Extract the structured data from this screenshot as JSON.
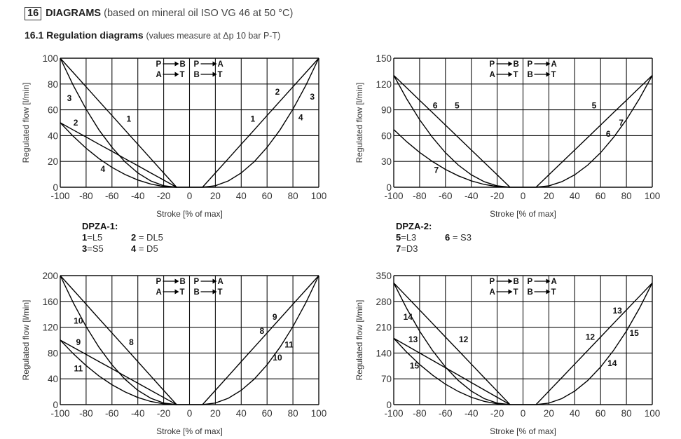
{
  "header": {
    "number": "16",
    "title": "DIAGRAMS",
    "subtitle": "(based on mineral oil ISO VG 46 at 50 °C)"
  },
  "section": {
    "title": "16.1 Regulation diagrams",
    "subtitle": "(values measure at Δp 10 bar P-T)"
  },
  "legends": [
    {
      "title": "DPZA-1:",
      "rows": [
        [
          {
            "num": "1",
            "text": "=L5"
          },
          {
            "num": "2",
            "text": " = DL5"
          }
        ],
        [
          {
            "num": "3",
            "text": "=S5"
          },
          {
            "num": "4",
            "text": " = D5"
          }
        ]
      ]
    },
    {
      "title": "DPZA-2:",
      "rows": [
        [
          {
            "num": "5",
            "text": "=L3"
          },
          {
            "num": "6",
            "text": " = S3"
          }
        ],
        [
          {
            "num": "7",
            "text": "=D3"
          }
        ]
      ]
    }
  ],
  "flow_labels": {
    "left": [
      "P",
      "B",
      "A",
      "T"
    ],
    "right": [
      "P",
      "A",
      "B",
      "T"
    ]
  },
  "chart_data": [
    {
      "type": "line",
      "xlabel": "Stroke [% of max]",
      "ylabel": "Regulated flow [l/min]",
      "xlim": [
        -100,
        100
      ],
      "ylim": [
        0,
        100
      ],
      "xticks": [
        -100,
        -80,
        -60,
        -40,
        -20,
        0,
        20,
        40,
        60,
        80,
        100
      ],
      "yticks": [
        0,
        20,
        40,
        60,
        80,
        100
      ],
      "grid": true,
      "x_left": [
        -100,
        -90,
        -80,
        -70,
        -60,
        -50,
        -40,
        -30,
        -20,
        -10
      ],
      "x_right": [
        10,
        20,
        30,
        40,
        50,
        60,
        70,
        80,
        90,
        100
      ],
      "series": [
        {
          "side": "left",
          "values": [
            100,
            88.9,
            77.8,
            66.7,
            55.6,
            44.4,
            33.3,
            22.2,
            11.1,
            0
          ]
        },
        {
          "side": "left",
          "values": [
            100,
            79,
            60.5,
            44.4,
            30.9,
            19.8,
            11.1,
            4.9,
            1.2,
            0
          ]
        },
        {
          "side": "left",
          "values": [
            50,
            44.4,
            38.9,
            33.3,
            27.8,
            22.2,
            16.7,
            11.1,
            5.6,
            0
          ]
        },
        {
          "side": "left",
          "values": [
            50,
            39.5,
            30.2,
            22.2,
            15.4,
            9.9,
            5.6,
            2.5,
            0.6,
            0
          ]
        },
        {
          "side": "right",
          "values": [
            0,
            11.1,
            22.2,
            33.3,
            44.4,
            55.6,
            66.7,
            77.8,
            88.9,
            100
          ]
        },
        {
          "side": "right",
          "values": [
            0,
            1.2,
            4.9,
            11.1,
            19.8,
            30.9,
            44.4,
            60.5,
            79,
            100
          ]
        }
      ],
      "annotations": [
        {
          "text": "3",
          "x": -93,
          "y": 69
        },
        {
          "text": "2",
          "x": -88,
          "y": 50
        },
        {
          "text": "1",
          "x": -47,
          "y": 53
        },
        {
          "text": "4",
          "x": -67,
          "y": 14
        },
        {
          "text": "1",
          "x": 49,
          "y": 53
        },
        {
          "text": "2",
          "x": 68,
          "y": 74
        },
        {
          "text": "3",
          "x": 95,
          "y": 70
        },
        {
          "text": "4",
          "x": 86,
          "y": 54
        }
      ]
    },
    {
      "type": "line",
      "xlabel": "Stroke [% of max]",
      "ylabel": "Regulated flow [l/min]",
      "xlim": [
        -100,
        100
      ],
      "ylim": [
        0,
        150
      ],
      "xticks": [
        -100,
        -80,
        -60,
        -40,
        -20,
        0,
        20,
        40,
        60,
        80,
        100
      ],
      "yticks": [
        0,
        30,
        60,
        90,
        120,
        150
      ],
      "grid": true,
      "x_left": [
        -100,
        -90,
        -80,
        -70,
        -60,
        -50,
        -40,
        -30,
        -20,
        -10
      ],
      "x_right": [
        10,
        20,
        30,
        40,
        50,
        60,
        70,
        80,
        90,
        100
      ],
      "series": [
        {
          "side": "left",
          "values": [
            130,
            115.6,
            101.1,
            86.7,
            72.2,
            57.8,
            43.3,
            28.9,
            14.4,
            0
          ]
        },
        {
          "side": "left",
          "values": [
            130,
            102.7,
            78.6,
            57.8,
            40.1,
            25.7,
            14.4,
            6.4,
            1.6,
            0
          ]
        },
        {
          "side": "left",
          "values": [
            67,
            52.9,
            40.5,
            29.8,
            20.7,
            13.2,
            7.4,
            3.3,
            0.8,
            0
          ]
        },
        {
          "side": "right",
          "values": [
            0,
            14.4,
            28.9,
            43.3,
            57.8,
            72.2,
            86.7,
            101.1,
            115.6,
            130
          ]
        },
        {
          "side": "right",
          "values": [
            0,
            1.6,
            6.4,
            14.4,
            25.7,
            40.1,
            57.8,
            78.6,
            102.7,
            130
          ]
        }
      ],
      "annotations": [
        {
          "text": "6",
          "x": -68,
          "y": 95
        },
        {
          "text": "5",
          "x": -51,
          "y": 95
        },
        {
          "text": "7",
          "x": -67,
          "y": 20
        },
        {
          "text": "5",
          "x": 55,
          "y": 95
        },
        {
          "text": "7",
          "x": 76,
          "y": 75
        },
        {
          "text": "6",
          "x": 66,
          "y": 62
        }
      ]
    },
    {
      "type": "line",
      "xlabel": "Stroke [% of max]",
      "ylabel": "Regulated flow [l/min]",
      "xlim": [
        -100,
        100
      ],
      "ylim": [
        0,
        200
      ],
      "xticks": [
        -100,
        -80,
        -60,
        -40,
        -20,
        0,
        20,
        40,
        60,
        80,
        100
      ],
      "yticks": [
        0,
        40,
        80,
        120,
        160,
        200
      ],
      "grid": true,
      "x_left": [
        -100,
        -90,
        -80,
        -70,
        -60,
        -50,
        -40,
        -30,
        -20,
        -10
      ],
      "x_right": [
        10,
        20,
        30,
        40,
        50,
        60,
        70,
        80,
        90,
        100
      ],
      "series": [
        {
          "side": "left",
          "values": [
            200,
            177.8,
            155.6,
            133.3,
            111.1,
            88.9,
            66.7,
            44.4,
            22.2,
            0
          ]
        },
        {
          "side": "left",
          "values": [
            200,
            158,
            121,
            88.9,
            61.7,
            39.5,
            22.2,
            9.9,
            2.5,
            0
          ]
        },
        {
          "side": "left",
          "values": [
            100,
            88.9,
            77.8,
            66.7,
            55.6,
            44.4,
            33.3,
            22.2,
            11.1,
            0
          ]
        },
        {
          "side": "left",
          "values": [
            100,
            79,
            60.5,
            44.4,
            30.9,
            19.8,
            11.1,
            4.9,
            1.2,
            0
          ]
        },
        {
          "side": "right",
          "values": [
            0,
            22.2,
            44.4,
            66.7,
            88.9,
            111.1,
            133.3,
            155.6,
            177.8,
            200
          ]
        },
        {
          "side": "right",
          "values": [
            0,
            2.5,
            9.9,
            22.2,
            39.5,
            61.7,
            88.9,
            121,
            158,
            200
          ]
        }
      ],
      "annotations": [
        {
          "text": "10",
          "x": -86,
          "y": 130
        },
        {
          "text": "9",
          "x": -86,
          "y": 97
        },
        {
          "text": "11",
          "x": -86,
          "y": 56
        },
        {
          "text": "8",
          "x": -45,
          "y": 97
        },
        {
          "text": "9",
          "x": 66,
          "y": 136
        },
        {
          "text": "8",
          "x": 56,
          "y": 114
        },
        {
          "text": "11",
          "x": 77,
          "y": 93
        },
        {
          "text": "10",
          "x": 68,
          "y": 73
        }
      ]
    },
    {
      "type": "line",
      "xlabel": "Stroke [% of max]",
      "ylabel": "Regulated flow [l/min]",
      "xlim": [
        -100,
        100
      ],
      "ylim": [
        0,
        350
      ],
      "xticks": [
        -100,
        -80,
        -60,
        -40,
        -20,
        0,
        20,
        40,
        60,
        80,
        100
      ],
      "yticks": [
        0,
        70,
        140,
        210,
        280,
        350
      ],
      "grid": true,
      "x_left": [
        -100,
        -90,
        -80,
        -70,
        -60,
        -50,
        -40,
        -30,
        -20,
        -10
      ],
      "x_right": [
        10,
        20,
        30,
        40,
        50,
        60,
        70,
        80,
        90,
        100
      ],
      "series": [
        {
          "side": "left",
          "values": [
            330,
            293.3,
            256.7,
            220,
            183.3,
            146.7,
            110,
            73.3,
            36.7,
            0
          ]
        },
        {
          "side": "left",
          "values": [
            330,
            260.7,
            199.6,
            146.7,
            101.9,
            65.2,
            36.7,
            16.3,
            4.1,
            0
          ]
        },
        {
          "side": "left",
          "values": [
            180,
            160,
            140,
            120,
            100,
            80,
            60,
            40,
            20,
            0
          ]
        },
        {
          "side": "left",
          "values": [
            180,
            142.2,
            108.9,
            80,
            55.6,
            35.6,
            20,
            8.9,
            2.2,
            0
          ]
        },
        {
          "side": "right",
          "values": [
            0,
            36.7,
            73.3,
            110,
            146.7,
            183.3,
            220,
            256.7,
            293.3,
            330
          ]
        },
        {
          "side": "right",
          "values": [
            0,
            4.1,
            16.3,
            36.7,
            65.2,
            101.9,
            146.7,
            199.6,
            260.7,
            330
          ]
        }
      ],
      "annotations": [
        {
          "text": "14",
          "x": -89,
          "y": 238
        },
        {
          "text": "13",
          "x": -85,
          "y": 177
        },
        {
          "text": "15",
          "x": -84,
          "y": 106
        },
        {
          "text": "12",
          "x": -46,
          "y": 177
        },
        {
          "text": "13",
          "x": 73,
          "y": 255
        },
        {
          "text": "12",
          "x": 52,
          "y": 184
        },
        {
          "text": "15",
          "x": 86,
          "y": 194
        },
        {
          "text": "14",
          "x": 69,
          "y": 112
        }
      ]
    }
  ]
}
